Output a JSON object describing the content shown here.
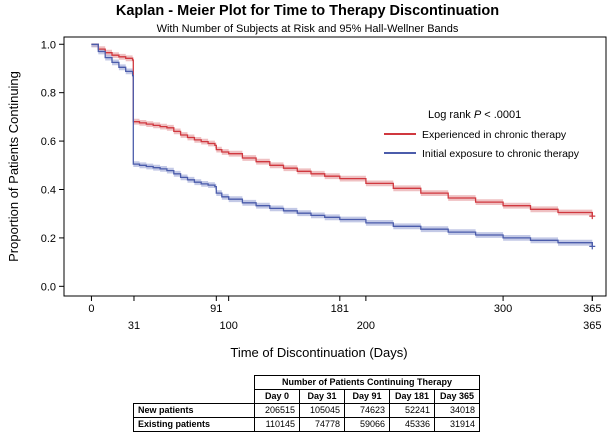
{
  "chart_data": {
    "type": "line",
    "title": "Kaplan - Meier Plot for Time to Therapy Discontinuation",
    "subtitle": "With Number of Subjects at Risk and 95% Hall-Wellner Bands",
    "xlabel": "Time of Discontinuation (Days)",
    "ylabel": "Proportion of Patients Continuing",
    "xlim": [
      -20,
      375
    ],
    "ylim": [
      -0.04,
      1.03
    ],
    "yticks": [
      0.0,
      0.2,
      0.4,
      0.6,
      0.8,
      1.0
    ],
    "ytick_labels": [
      "0.0",
      "0.2",
      "0.4",
      "0.6",
      "0.8",
      "1.0"
    ],
    "xticks_top": [
      0,
      91,
      181,
      300,
      365
    ],
    "xtick_labels_top": [
      "0",
      "91",
      "181",
      "300",
      "365"
    ],
    "xticks_bottom": [
      31,
      100,
      200,
      365
    ],
    "xtick_labels_bottom": [
      "31",
      "100",
      "200",
      "365"
    ],
    "annotation": {
      "prefix": "Log rank ",
      "italic": "P",
      "suffix": " < .0001"
    },
    "legend_position": "right-center",
    "series": [
      {
        "name": "Experienced in chronic therapy",
        "color": "#d0383f",
        "band_color": "#e8a5a8",
        "x": [
          0,
          5,
          10,
          15,
          20,
          25,
          30,
          30.5,
          35,
          40,
          45,
          50,
          55,
          60,
          65,
          70,
          75,
          80,
          85,
          90,
          91,
          95,
          100,
          110,
          120,
          130,
          140,
          150,
          160,
          170,
          181,
          200,
          220,
          240,
          260,
          280,
          300,
          320,
          340,
          365
        ],
        "values": [
          1.0,
          0.98,
          0.965,
          0.955,
          0.948,
          0.942,
          0.935,
          0.68,
          0.675,
          0.67,
          0.665,
          0.66,
          0.655,
          0.64,
          0.625,
          0.615,
          0.605,
          0.598,
          0.59,
          0.582,
          0.565,
          0.555,
          0.548,
          0.53,
          0.515,
          0.5,
          0.488,
          0.475,
          0.465,
          0.455,
          0.445,
          0.425,
          0.405,
          0.385,
          0.365,
          0.348,
          0.333,
          0.318,
          0.305,
          0.29
        ]
      },
      {
        "name": "Initial exposure to chronic therapy",
        "color": "#4b5cab",
        "band_color": "#a9b2dc",
        "x": [
          0,
          5,
          10,
          15,
          20,
          25,
          30,
          30.5,
          35,
          40,
          45,
          50,
          55,
          60,
          65,
          70,
          75,
          80,
          85,
          90,
          91,
          95,
          100,
          110,
          120,
          130,
          140,
          150,
          160,
          170,
          181,
          200,
          220,
          240,
          260,
          280,
          300,
          320,
          340,
          365
        ],
        "values": [
          1.0,
          0.97,
          0.945,
          0.925,
          0.905,
          0.888,
          0.87,
          0.505,
          0.5,
          0.495,
          0.49,
          0.485,
          0.478,
          0.465,
          0.45,
          0.44,
          0.43,
          0.423,
          0.418,
          0.412,
          0.385,
          0.37,
          0.36,
          0.345,
          0.333,
          0.322,
          0.312,
          0.302,
          0.293,
          0.285,
          0.276,
          0.262,
          0.248,
          0.236,
          0.224,
          0.212,
          0.2,
          0.19,
          0.18,
          0.165
        ]
      }
    ]
  },
  "risk_table": {
    "title": "Number of Patients Continuing Therapy",
    "columns": [
      "Day 0",
      "Day 31",
      "Day 91",
      "Day 181",
      "Day 365"
    ],
    "rows": [
      {
        "label": "New patients",
        "values": [
          "206515",
          "105045",
          "74623",
          "52241",
          "34018"
        ]
      },
      {
        "label": "Existing patients",
        "values": [
          "110145",
          "74778",
          "59066",
          "45336",
          "31914"
        ]
      }
    ]
  }
}
